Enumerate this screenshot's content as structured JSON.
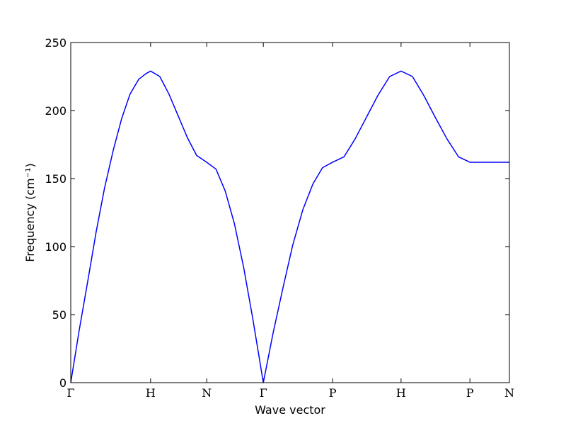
{
  "chart_data": {
    "type": "line",
    "x_label": "Wave vector",
    "y_label": "Frequency (cm⁻¹)",
    "xlim": [
      0,
      1
    ],
    "xticks": [
      {
        "value": 0,
        "label": "Γ"
      },
      {
        "value": 0.182,
        "label": "H"
      },
      {
        "value": 0.31,
        "label": "N"
      },
      {
        "value": 0.439,
        "label": "Γ"
      },
      {
        "value": 0.597,
        "label": "P"
      },
      {
        "value": 0.753,
        "label": "H"
      },
      {
        "value": 0.91,
        "label": "P"
      },
      {
        "value": 1,
        "label": "N"
      }
    ],
    "ylim": [
      0,
      250
    ],
    "yticks": [
      0,
      50,
      100,
      150,
      200,
      250
    ],
    "x": [
      0,
      0.019,
      0.039,
      0.058,
      0.077,
      0.097,
      0.116,
      0.135,
      0.155,
      0.171,
      0.182,
      0.203,
      0.224,
      0.245,
      0.266,
      0.287,
      0.31,
      0.331,
      0.352,
      0.373,
      0.394,
      0.415,
      0.439,
      0.461,
      0.484,
      0.506,
      0.529,
      0.552,
      0.574,
      0.597,
      0.623,
      0.648,
      0.674,
      0.7,
      0.727,
      0.753,
      0.779,
      0.805,
      0.831,
      0.858,
      0.884,
      0.91,
      1
    ],
    "series": [
      {
        "color": "#0000ff",
        "values": [
          0,
          38,
          75,
          111,
          143,
          171,
          194,
          212,
          223,
          227,
          229,
          225,
          212,
          196,
          180,
          167,
          162,
          157,
          141,
          117,
          85,
          47,
          0,
          36,
          70,
          101,
          127,
          146,
          158,
          162,
          166,
          179,
          195,
          211,
          225,
          229,
          225,
          211,
          195,
          179,
          166,
          162,
          162
        ]
      }
    ]
  }
}
